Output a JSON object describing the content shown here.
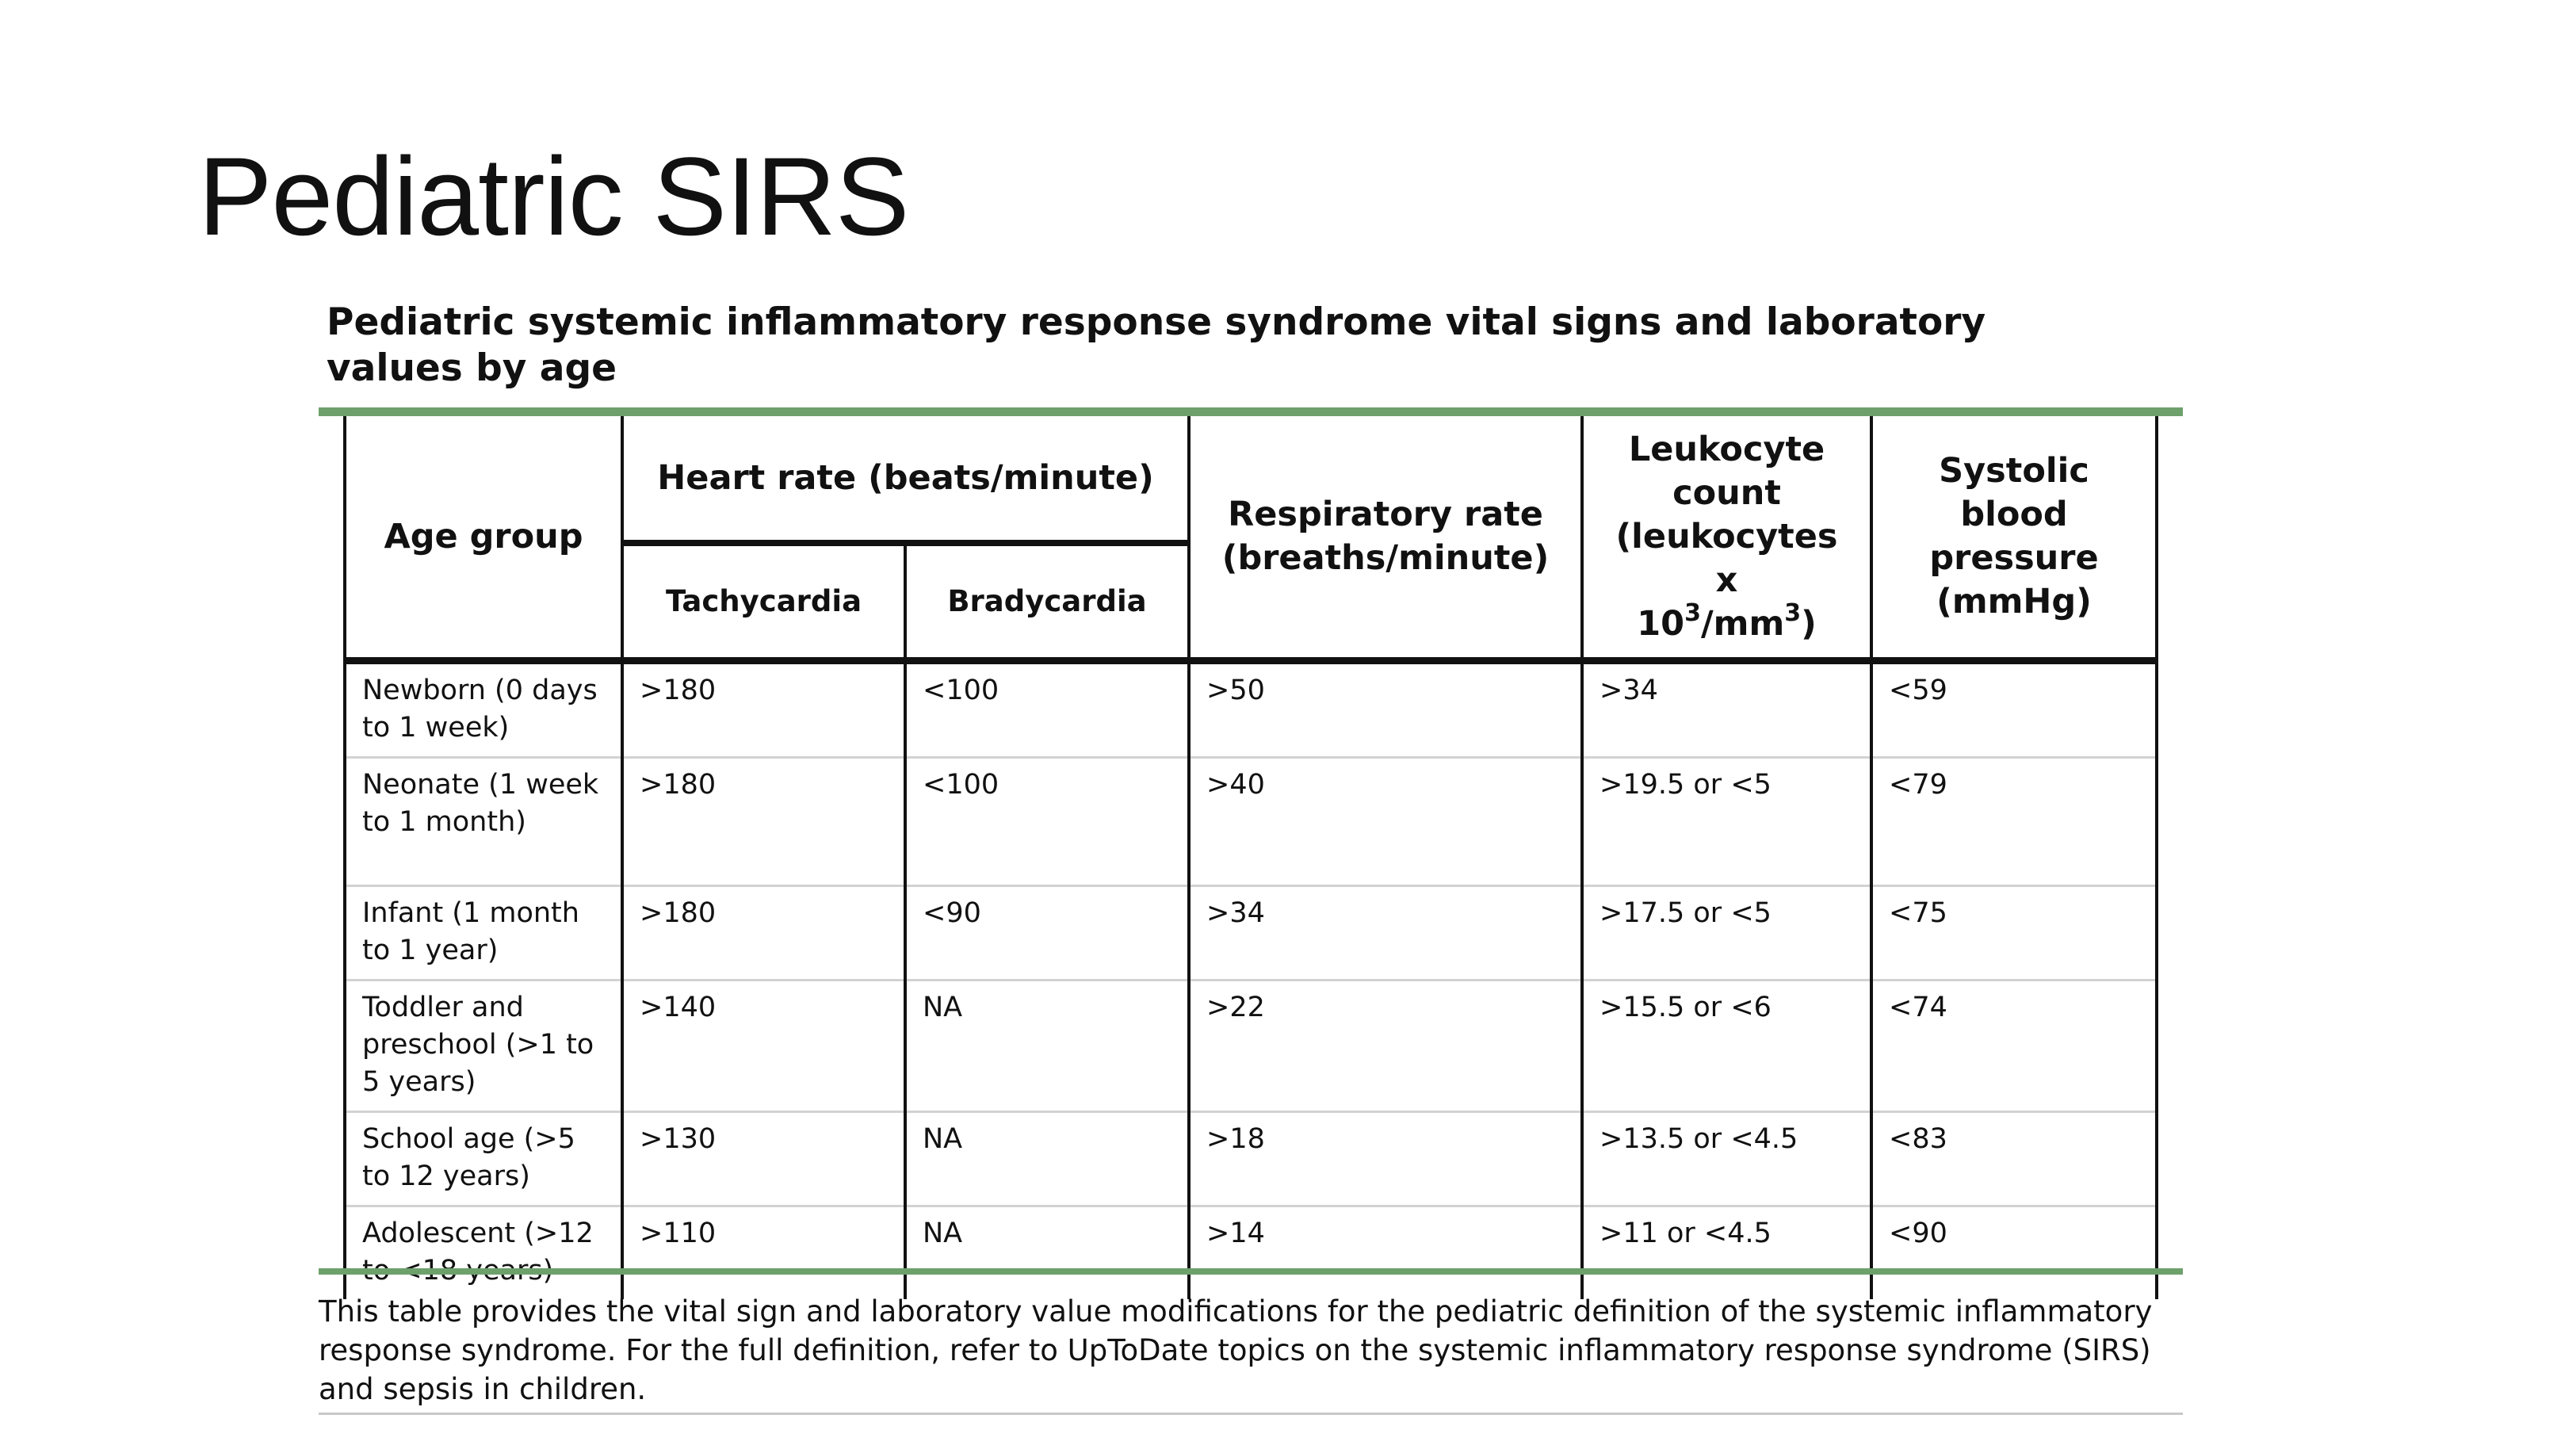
{
  "slide": {
    "title": "Pediatric SIRS"
  },
  "table": {
    "caption_line1": "Pediatric systemic inflammatory response syndrome vital signs and laboratory",
    "caption_line2": "values by age",
    "headers": {
      "age_group": "Age group",
      "heart_rate": "Heart rate (beats/minute)",
      "tachycardia": "Tachycardia",
      "bradycardia": "Bradycardia",
      "respiratory_line1": "Respiratory rate",
      "respiratory_line2": "(breaths/minute)",
      "leukocyte_line1": "Leukocyte",
      "leukocyte_line2": "count",
      "leukocyte_line3": "(leukocytes",
      "leukocyte_line4": "x",
      "leukocyte_base": "10",
      "leukocyte_exp1": "3",
      "leukocyte_unit": "/mm",
      "leukocyte_exp2": "3",
      "leukocyte_close": ")",
      "systolic_line1": "Systolic",
      "systolic_line2": "blood",
      "systolic_line3": "pressure",
      "systolic_line4": "(mmHg)"
    },
    "rows": [
      {
        "age": "Newborn (0 days to 1 week)",
        "tachy": ">180",
        "brady": "<100",
        "resp": ">50",
        "leuk": ">34",
        "sbp": "<59"
      },
      {
        "age": "Neonate (1 week to 1 month)",
        "tachy": ">180",
        "brady": "<100",
        "resp": ">40",
        "leuk": ">19.5 or <5",
        "sbp": "<79"
      },
      {
        "age": "Infant (1 month to 1 year)",
        "tachy": ">180",
        "brady": "<90",
        "resp": ">34",
        "leuk": ">17.5 or <5",
        "sbp": "<75"
      },
      {
        "age": "Toddler and preschool (>1 to 5 years)",
        "tachy": ">140",
        "brady": "NA",
        "resp": ">22",
        "leuk": ">15.5 or <6",
        "sbp": "<74"
      },
      {
        "age": "School age (>5 to 12 years)",
        "tachy": ">130",
        "brady": "NA",
        "resp": ">18",
        "leuk": ">13.5 or <4.5",
        "sbp": "<83"
      },
      {
        "age": "Adolescent (>12 to <18 years)",
        "tachy": ">110",
        "brady": "NA",
        "resp": ">14",
        "leuk": ">11 or <4.5",
        "sbp": "<90"
      }
    ],
    "footnote": "This table provides the vital sign and laboratory value modifications for the pediatric definition of the systemic inflammatory response syndrome. For the full definition, refer to UpToDate topics on the systemic inflammatory response syndrome (SIRS) and sepsis in children."
  },
  "colors": {
    "accent_green": "#6ea06b",
    "divider_grey": "#d2d2d2"
  }
}
